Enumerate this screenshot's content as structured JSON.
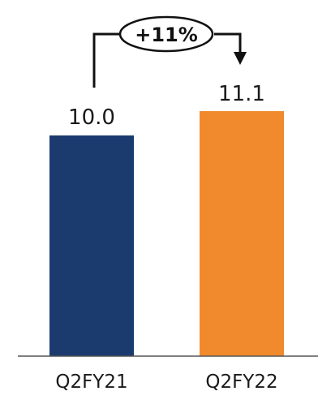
{
  "chart_data": {
    "type": "bar",
    "categories": [
      "Q2FY21",
      "Q2FY22"
    ],
    "values": [
      10.0,
      11.1
    ],
    "value_labels": [
      "10.0",
      "11.1"
    ],
    "colors": [
      "#1b3b6f",
      "#f08a2c"
    ],
    "ylim": [
      0,
      11.1
    ],
    "annotation": {
      "label": "+11%",
      "from": "Q2FY21",
      "to": "Q2FY22"
    },
    "title": "",
    "xlabel": "",
    "ylabel": ""
  }
}
